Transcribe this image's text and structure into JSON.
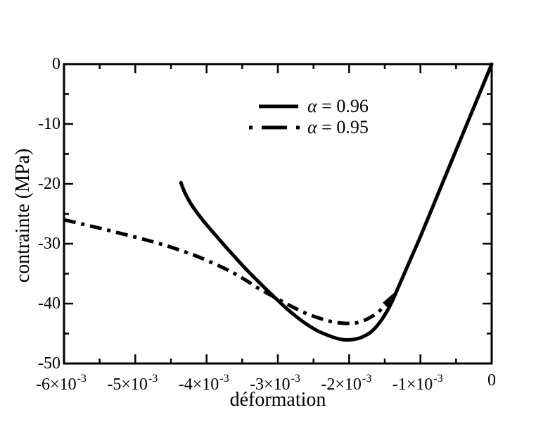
{
  "figure": {
    "bg": "#ffffff",
    "ink": "#000000"
  },
  "chart_data": {
    "type": "line",
    "title": "",
    "xlabel": "déformation",
    "ylabel": "contrainte (MPa)",
    "xlim": [
      -0.006,
      0
    ],
    "ylim": [
      -50,
      0
    ],
    "grid": "off",
    "legend_position": "upper-center",
    "x_unit_note": "series x values given in units of 10^-3 strain",
    "x_major_ticks_e3": [
      -6,
      -5,
      -4,
      -3,
      -2,
      -1,
      0
    ],
    "x_minor_ticks_e3": [
      -5.5,
      -4.5,
      -3.5,
      -2.5,
      -1.5,
      -0.5
    ],
    "x_tick_labels": [
      {
        "base": "-6×10",
        "exp": "-3"
      },
      {
        "base": "-5×10",
        "exp": "-3"
      },
      {
        "base": "-4×10",
        "exp": "-3"
      },
      {
        "base": "-3×10",
        "exp": "-3"
      },
      {
        "base": "-2×10",
        "exp": "-3"
      },
      {
        "base": "-1×10",
        "exp": "-3"
      },
      {
        "base": "0",
        "exp": ""
      }
    ],
    "y_major_ticks": [
      0,
      -10,
      -20,
      -30,
      -40,
      -50
    ],
    "y_minor_ticks": [
      -5,
      -15,
      -25,
      -35,
      -45
    ],
    "y_tick_labels": [
      "0",
      "-10",
      "-20",
      "-30",
      "-40",
      "-50"
    ],
    "series": [
      {
        "name": "α = 0.96",
        "alpha": "α",
        "eq": " = 0.96",
        "line_style": "solid",
        "x_e3": [
          0,
          -0.25,
          -0.5,
          -0.75,
          -1.0,
          -1.15,
          -1.3,
          -1.42,
          -1.55,
          -1.68,
          -1.82,
          -1.95,
          -2.1,
          -2.25,
          -2.45,
          -2.65,
          -2.85,
          -3.05,
          -3.25,
          -3.45,
          -3.65,
          -3.85,
          -4.05,
          -4.2,
          -4.3,
          -4.36
        ],
        "y_mpa": [
          0,
          -7.2,
          -14.4,
          -21.6,
          -28.8,
          -32.9,
          -37.0,
          -40.2,
          -42.8,
          -44.6,
          -45.6,
          -46.0,
          -46.0,
          -45.5,
          -44.5,
          -43.0,
          -41.1,
          -38.9,
          -36.6,
          -34.2,
          -31.6,
          -28.9,
          -26.1,
          -23.7,
          -21.6,
          -19.8
        ]
      },
      {
        "name": "α = 0.95",
        "alpha": "α",
        "eq": " = 0.95",
        "line_style": "dash-dot",
        "x_e3": [
          -6.0,
          -5.5,
          -5.0,
          -4.6,
          -4.2,
          -3.9,
          -3.65,
          -3.45,
          -3.25,
          -3.05,
          -2.85,
          -2.65,
          -2.45,
          -2.25,
          -2.05,
          -1.9,
          -1.75,
          -1.6,
          -1.5
        ],
        "y_mpa": [
          -26.0,
          -27.4,
          -28.9,
          -30.2,
          -31.8,
          -33.3,
          -34.7,
          -36.1,
          -37.6,
          -38.9,
          -40.2,
          -41.4,
          -42.3,
          -43.0,
          -43.3,
          -43.2,
          -42.6,
          -41.5,
          -40.3
        ]
      }
    ],
    "annotation_arrow": {
      "tip_e3": [
        -1.372,
        -38.2
      ],
      "meaning": "arrowhead where the α = 0.95 curve rejoins the elastic branch"
    }
  }
}
